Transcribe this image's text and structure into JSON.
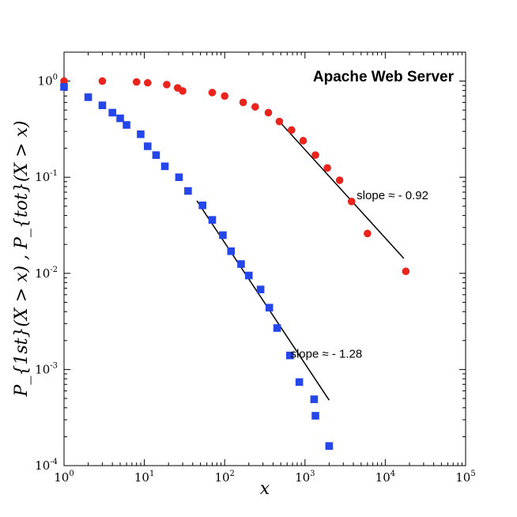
{
  "chart_data": {
    "type": "scatter",
    "title": "Apache Web Server",
    "xlabel": "x",
    "ylabel": "P_{1st}(X > x) ,  P_{tot}(X > x)",
    "xscale": "log",
    "yscale": "log",
    "xlim": [
      1,
      100000
    ],
    "ylim": [
      0.0001,
      2
    ],
    "x_ticks": [
      {
        "base": "10",
        "exp": "0",
        "value": 1
      },
      {
        "base": "10",
        "exp": "1",
        "value": 10
      },
      {
        "base": "10",
        "exp": "2",
        "value": 100
      },
      {
        "base": "10",
        "exp": "3",
        "value": 1000
      },
      {
        "base": "10",
        "exp": "4",
        "value": 10000
      },
      {
        "base": "10",
        "exp": "5",
        "value": 100000
      }
    ],
    "y_ticks": [
      {
        "base": "10",
        "exp": "-4",
        "value": 0.0001
      },
      {
        "base": "10",
        "exp": "-3",
        "value": 0.001
      },
      {
        "base": "10",
        "exp": "-2",
        "value": 0.01
      },
      {
        "base": "10",
        "exp": "-1",
        "value": 0.1
      },
      {
        "base": "10",
        "exp": "0",
        "value": 1
      }
    ],
    "series": [
      {
        "name": "P_tot",
        "marker": "circle",
        "color": "#e8241c",
        "x": [
          1,
          3,
          8,
          11,
          19,
          26,
          30,
          70,
          100,
          170,
          240,
          350,
          480,
          680,
          950,
          1350,
          1900,
          2700,
          3800,
          6000,
          18000
        ],
        "y": [
          1.0,
          1.0,
          0.98,
          0.96,
          0.92,
          0.85,
          0.79,
          0.76,
          0.7,
          0.6,
          0.54,
          0.47,
          0.38,
          0.31,
          0.24,
          0.17,
          0.125,
          0.093,
          0.056,
          0.026,
          0.0105
        ]
      },
      {
        "name": "P_1st",
        "marker": "square",
        "color": "#2547e8",
        "x": [
          1,
          2,
          3,
          4,
          5,
          6,
          9,
          11,
          14,
          18,
          27,
          35,
          53,
          70,
          95,
          120,
          160,
          200,
          280,
          360,
          450,
          650,
          850,
          1300,
          1350,
          2000
        ],
        "y": [
          0.87,
          0.68,
          0.56,
          0.47,
          0.41,
          0.35,
          0.28,
          0.21,
          0.17,
          0.13,
          0.1,
          0.072,
          0.051,
          0.036,
          0.025,
          0.017,
          0.0125,
          0.0095,
          0.0068,
          0.0044,
          0.0027,
          0.0014,
          0.00074,
          0.00049,
          0.00033,
          0.00016
        ]
      }
    ],
    "fit_lines": [
      {
        "name": "fit_tot",
        "x": [
          480,
          17000
        ],
        "y": [
          0.38,
          0.0143
        ],
        "color": "#000000"
      },
      {
        "name": "fit_1st",
        "x": [
          45,
          2000
        ],
        "y": [
          0.057,
          0.00048
        ],
        "color": "#000000"
      }
    ],
    "annotations": [
      {
        "text": "slope ≈ - 0.92",
        "x": 4400,
        "y": 0.059
      },
      {
        "text": "slope ≈ - 1.28",
        "x": 660,
        "y": 0.00133
      }
    ]
  }
}
